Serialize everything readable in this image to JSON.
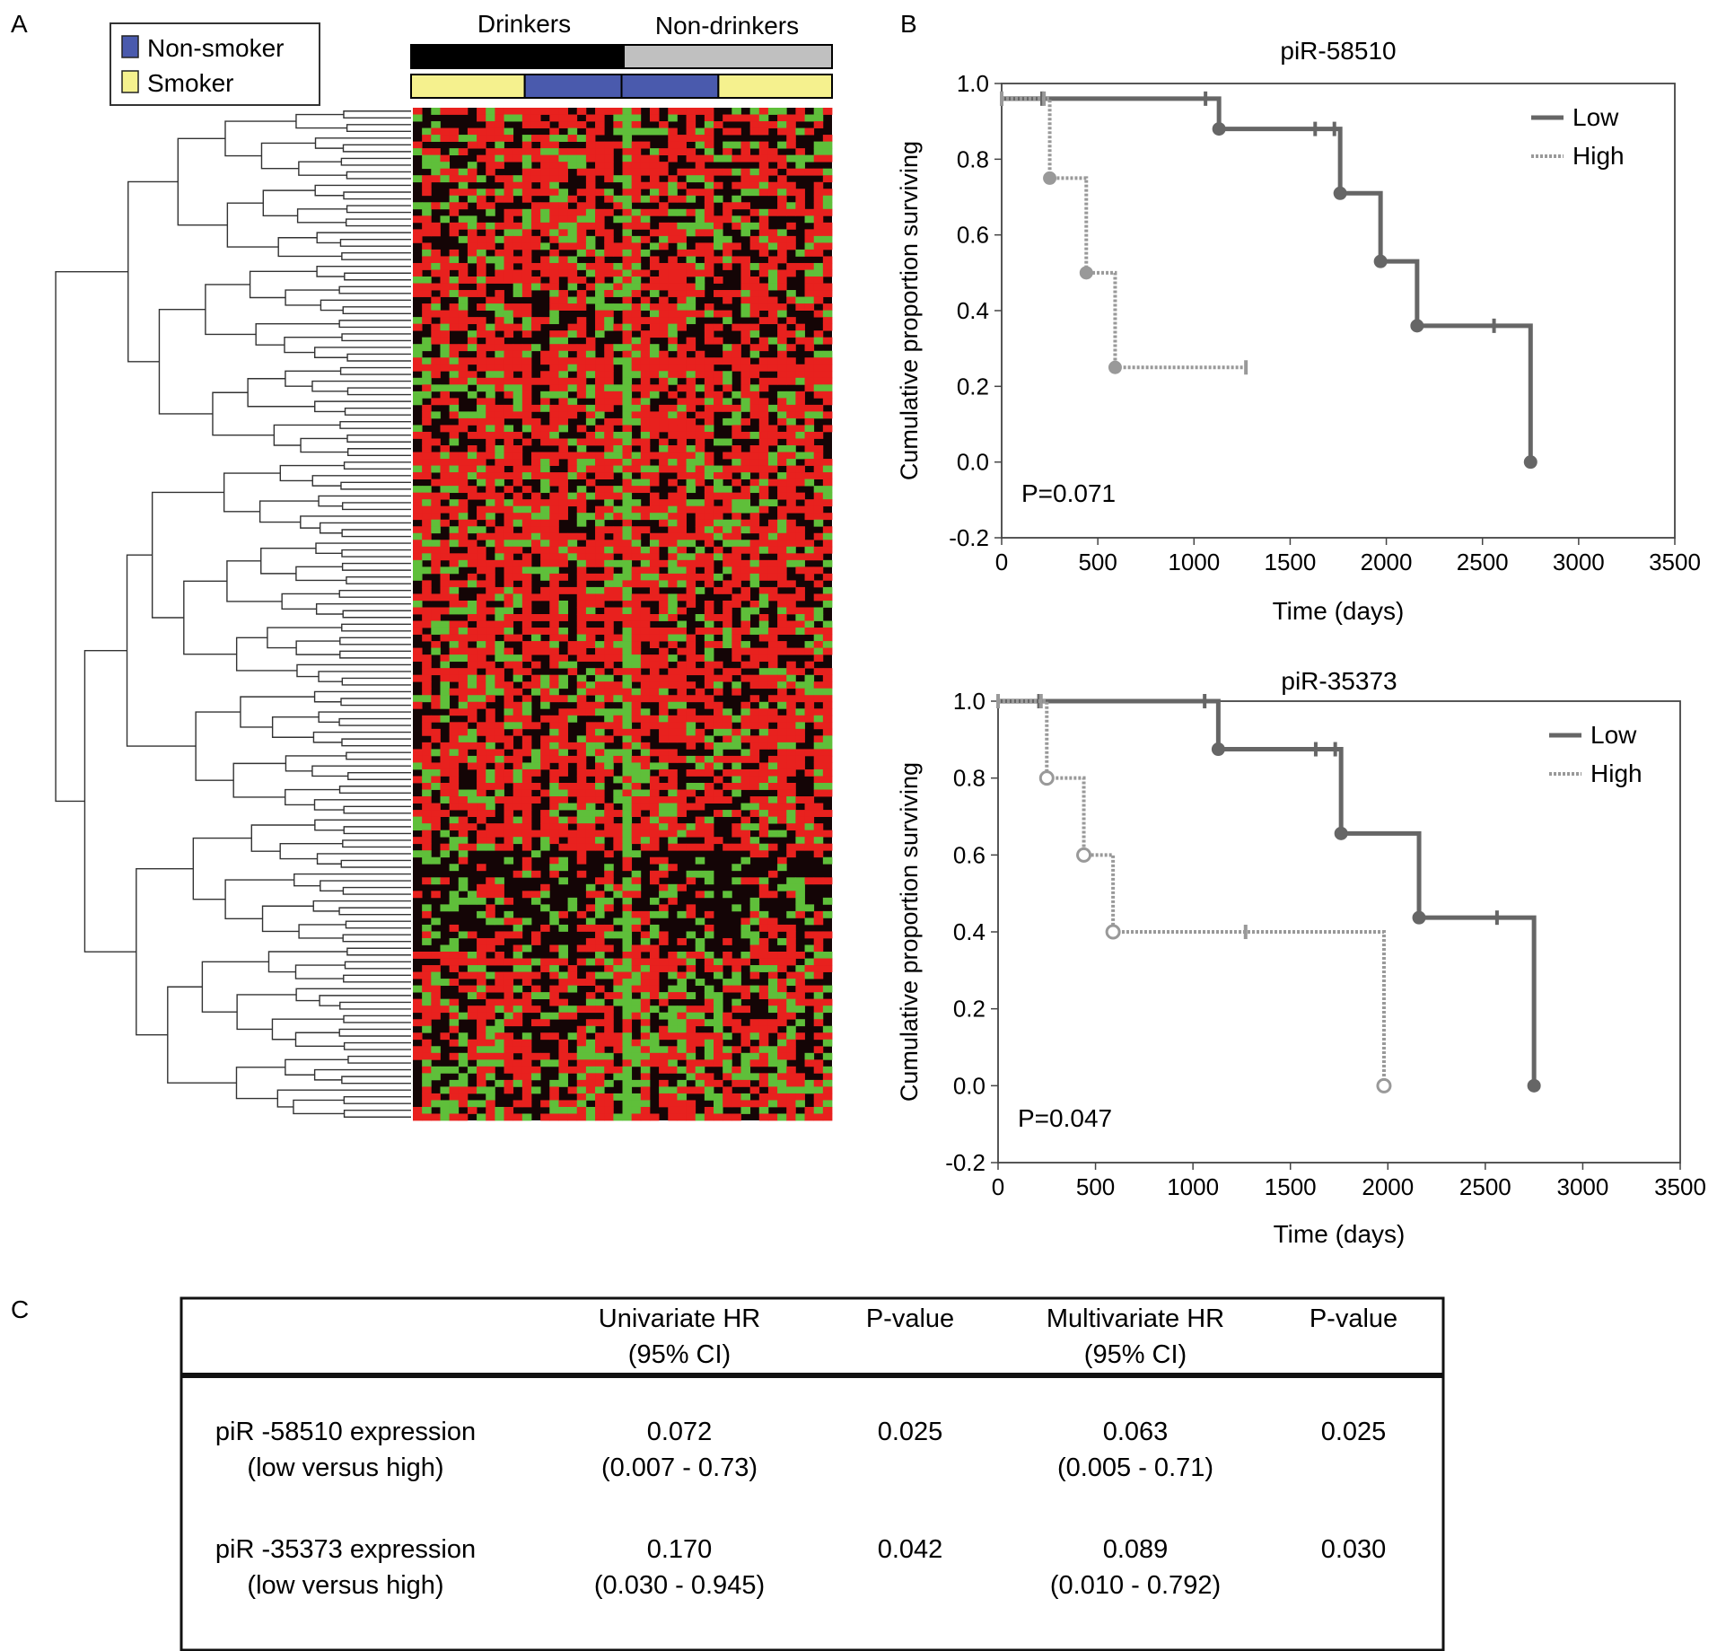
{
  "panels": {
    "a": "A",
    "b": "B",
    "c": "C"
  },
  "colors": {
    "heat_red": "#e8211e",
    "heat_green": "#5fbf3a",
    "heat_black": "#140506",
    "drinkers_bar": "#000000",
    "nondrinkers_bar": "#c0c0c0",
    "smoker": "#f5f18e",
    "non_smoker": "#4a5aad",
    "curve_low": "#666666",
    "curve_high": "#999999"
  },
  "heatmap": {
    "legend": [
      {
        "label": "Non-smoker",
        "color": "#4a5aad"
      },
      {
        "label": "Smoker",
        "color": "#f5f18e"
      }
    ],
    "group_labels": [
      "Drinkers",
      "Non-drinkers"
    ],
    "smoking_bar": [
      {
        "status": "Smoker",
        "fraction": 0.27
      },
      {
        "status": "Non-smoker",
        "fraction": 0.23
      },
      {
        "status": "Non-smoker",
        "fraction": 0.23
      },
      {
        "status": "Smoker",
        "fraction": 0.27
      }
    ]
  },
  "chart_data": [
    {
      "type": "line",
      "title": "piR-58510",
      "xlabel": "Time (days)",
      "ylabel": "Cumulative proportion surviving",
      "xlim": [
        0,
        3500
      ],
      "ylim": [
        -0.2,
        1.0
      ],
      "xticks": [
        "0",
        "500",
        "1000",
        "1500",
        "2000",
        "2500",
        "3000",
        "3500"
      ],
      "yticks": [
        "-0.2",
        "0.0",
        "0.2",
        "0.4",
        "0.6",
        "0.8",
        "1.0"
      ],
      "legend_position": "top-right",
      "annotation": "P=0.071",
      "series": [
        {
          "name": "Low",
          "style": "solid",
          "steps": [
            [
              0,
              0.96
            ],
            [
              1130,
              0.88
            ],
            [
              1760,
              0.71
            ],
            [
              1970,
              0.53
            ],
            [
              2160,
              0.36
            ],
            [
              2750,
              0.0
            ]
          ],
          "end": 2750,
          "censored": [
            [
              0,
              0.96
            ],
            [
              210,
              0.96
            ],
            [
              1060,
              0.96
            ],
            [
              1630,
              0.88
            ],
            [
              1730,
              0.88
            ],
            [
              2560,
              0.36
            ]
          ],
          "events": [
            [
              1130,
              0.88
            ],
            [
              1760,
              0.71
            ],
            [
              1970,
              0.53
            ],
            [
              2160,
              0.36
            ],
            [
              2750,
              0.0
            ]
          ]
        },
        {
          "name": "High",
          "style": "dotted",
          "steps": [
            [
              0,
              0.96
            ],
            [
              250,
              0.75
            ],
            [
              440,
              0.5
            ],
            [
              590,
              0.25
            ]
          ],
          "end": 1270,
          "censored": [
            [
              0,
              0.96
            ],
            [
              220,
              0.96
            ],
            [
              1270,
              0.25
            ]
          ],
          "events": [
            [
              250,
              0.75
            ],
            [
              440,
              0.5
            ],
            [
              590,
              0.25
            ]
          ]
        }
      ]
    },
    {
      "type": "line",
      "title": "piR-35373",
      "xlabel": "Time (days)",
      "ylabel": "Cumulative proportion surviving",
      "xlim": [
        0,
        3500
      ],
      "ylim": [
        -0.2,
        1.0
      ],
      "xticks": [
        "0",
        "500",
        "1000",
        "1500",
        "2000",
        "2500",
        "3000",
        "3500"
      ],
      "yticks": [
        "-0.2",
        "0.0",
        "0.2",
        "0.4",
        "0.6",
        "0.8",
        "1.0"
      ],
      "legend_position": "top-right",
      "annotation": "P=0.047",
      "series": [
        {
          "name": "Low",
          "style": "solid",
          "steps": [
            [
              0,
              1.0
            ],
            [
              1130,
              0.875
            ],
            [
              1760,
              0.656
            ],
            [
              2160,
              0.437
            ],
            [
              2750,
              0.0
            ]
          ],
          "end": 2750,
          "censored": [
            [
              0,
              1.0
            ],
            [
              210,
              1.0
            ],
            [
              1060,
              1.0
            ],
            [
              1630,
              0.875
            ],
            [
              1730,
              0.875
            ],
            [
              2560,
              0.437
            ]
          ],
          "events": [
            [
              1130,
              0.875
            ],
            [
              1760,
              0.656
            ],
            [
              2160,
              0.437
            ],
            [
              2750,
              0.0
            ]
          ]
        },
        {
          "name": "High",
          "style": "dotted",
          "steps": [
            [
              0,
              1.0
            ],
            [
              250,
              0.8
            ],
            [
              440,
              0.6
            ],
            [
              590,
              0.4
            ],
            [
              1980,
              0.0
            ]
          ],
          "end": 1980,
          "censored": [
            [
              0,
              1.0
            ],
            [
              220,
              1.0
            ],
            [
              1270,
              0.4
            ]
          ],
          "events": [
            [
              250,
              0.8
            ],
            [
              440,
              0.6
            ],
            [
              590,
              0.4
            ],
            [
              1980,
              0.0
            ]
          ]
        }
      ]
    }
  ],
  "table": {
    "headers": [
      {
        "line1": "",
        "line2": ""
      },
      {
        "line1": "Univariate HR",
        "line2": "(95% CI)"
      },
      {
        "line1": "P-value",
        "line2": ""
      },
      {
        "line1": "Multivariate HR",
        "line2": "(95% CI)"
      },
      {
        "line1": "P-value",
        "line2": ""
      }
    ],
    "rows": [
      {
        "cells": [
          {
            "line1": "piR -58510 expression",
            "line2": "(low versus high)"
          },
          {
            "line1": "0.072",
            "line2": "(0.007 - 0.73)"
          },
          {
            "line1": "0.025",
            "line2": ""
          },
          {
            "line1": "0.063",
            "line2": "(0.005 - 0.71)"
          },
          {
            "line1": "0.025",
            "line2": ""
          }
        ]
      },
      {
        "cells": [
          {
            "line1": "piR -35373 expression",
            "line2": "(low versus high)"
          },
          {
            "line1": "0.170",
            "line2": "(0.030 - 0.945)"
          },
          {
            "line1": "0.042",
            "line2": ""
          },
          {
            "line1": "0.089",
            "line2": "(0.010 - 0.792)"
          },
          {
            "line1": "0.030",
            "line2": ""
          }
        ]
      }
    ]
  }
}
